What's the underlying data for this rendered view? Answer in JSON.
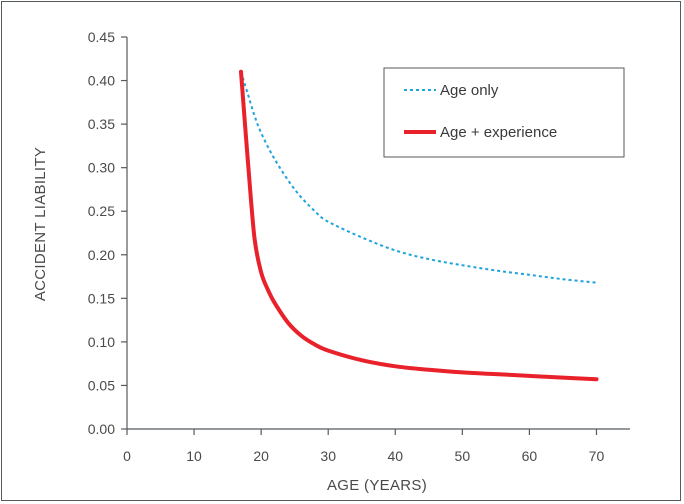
{
  "chart_data": {
    "type": "line",
    "title": "",
    "xlabel": "AGE (YEARS)",
    "ylabel": "ACCIDENT LIABILITY",
    "xlim": [
      0,
      75
    ],
    "ylim": [
      0,
      0.45
    ],
    "x_ticks": [
      "0",
      "10",
      "20",
      "30",
      "40",
      "50",
      "60",
      "70"
    ],
    "y_ticks": [
      "0.00",
      "0.05",
      "0.10",
      "0.15",
      "0.20",
      "0.25",
      "0.30",
      "0.35",
      "0.40",
      "0.45"
    ],
    "grid": false,
    "legend_position": "top-right",
    "series": [
      {
        "name": "Age only",
        "style": "dotted",
        "color": "#1fa3dc",
        "x": [
          17,
          18,
          19,
          20,
          22,
          25,
          28,
          30,
          35,
          40,
          45,
          50,
          55,
          60,
          65,
          70
        ],
        "y": [
          0.41,
          0.385,
          0.36,
          0.34,
          0.31,
          0.275,
          0.25,
          0.238,
          0.22,
          0.205,
          0.195,
          0.188,
          0.182,
          0.177,
          0.172,
          0.168
        ]
      },
      {
        "name": "Age + experience",
        "style": "solid",
        "color": "#e8212b",
        "x": [
          17,
          18,
          19,
          20,
          21,
          22,
          24,
          26,
          28,
          30,
          35,
          40,
          45,
          50,
          55,
          60,
          65,
          70
        ],
        "y": [
          0.41,
          0.31,
          0.22,
          0.18,
          0.16,
          0.145,
          0.122,
          0.107,
          0.097,
          0.09,
          0.079,
          0.072,
          0.068,
          0.065,
          0.063,
          0.061,
          0.059,
          0.057
        ]
      }
    ]
  }
}
